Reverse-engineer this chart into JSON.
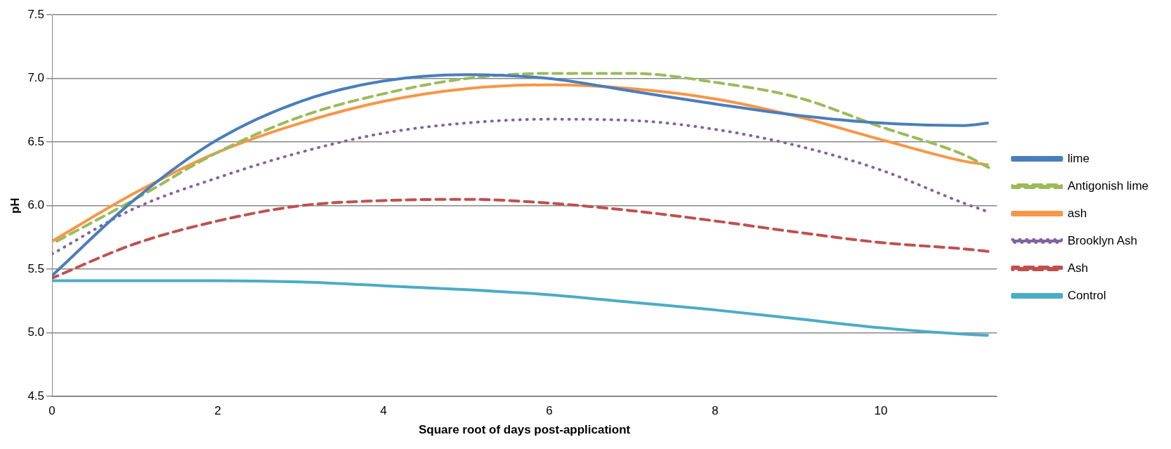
{
  "chart_data": {
    "type": "line",
    "xlabel": "Square root of days post-applicationt",
    "ylabel": "pH",
    "x": [
      0,
      1,
      2,
      3,
      4,
      5,
      6,
      7,
      8,
      9,
      10,
      11,
      11.3
    ],
    "xlim": [
      0,
      11.4
    ],
    "xticks": [
      0,
      2,
      4,
      6,
      8,
      10
    ],
    "ylim": [
      4.5,
      7.5
    ],
    "yticks": [
      4.5,
      {
        "value": 5,
        "label": "5.0"
      },
      5.5,
      {
        "value": 6,
        "label": "6.0"
      },
      6.5,
      {
        "value": 7,
        "label": "7.0"
      },
      7.5
    ],
    "grid": "y",
    "legend": "right",
    "marker": "none",
    "series": [
      {
        "name": "lime",
        "color": "#4a7ebb",
        "line_style": "solid",
        "values": [
          5.45,
          6.05,
          6.52,
          6.82,
          6.98,
          7.03,
          7.0,
          6.9,
          6.8,
          6.71,
          6.65,
          6.63,
          6.65
        ]
      },
      {
        "name": "Antigonish lime",
        "color": "#9bbb59",
        "line_style": "dashed",
        "values": [
          5.7,
          6.05,
          6.42,
          6.7,
          6.88,
          7.0,
          7.04,
          7.04,
          6.97,
          6.85,
          6.62,
          6.4,
          6.3
        ]
      },
      {
        "name": "ash",
        "color": "#f79646",
        "line_style": "solid",
        "values": [
          5.72,
          6.1,
          6.42,
          6.65,
          6.82,
          6.92,
          6.95,
          6.92,
          6.84,
          6.7,
          6.52,
          6.35,
          6.32
        ]
      },
      {
        "name": "Brooklyn Ash",
        "color": "#8064a2",
        "line_style": "dotted",
        "values": [
          5.62,
          5.98,
          6.22,
          6.42,
          6.57,
          6.65,
          6.68,
          6.67,
          6.6,
          6.47,
          6.28,
          6.02,
          5.95
        ]
      },
      {
        "name": "Ash",
        "color": "#c0504d",
        "line_style": "dashed",
        "values": [
          5.43,
          5.7,
          5.88,
          6.0,
          6.04,
          6.05,
          6.02,
          5.96,
          5.88,
          5.79,
          5.71,
          5.66,
          5.64
        ]
      },
      {
        "name": "Control",
        "color": "#4bacc6",
        "line_style": "solid",
        "values": [
          5.41,
          5.41,
          5.41,
          5.4,
          5.37,
          5.34,
          5.3,
          5.24,
          5.18,
          5.11,
          5.04,
          4.99,
          4.98
        ]
      }
    ]
  }
}
